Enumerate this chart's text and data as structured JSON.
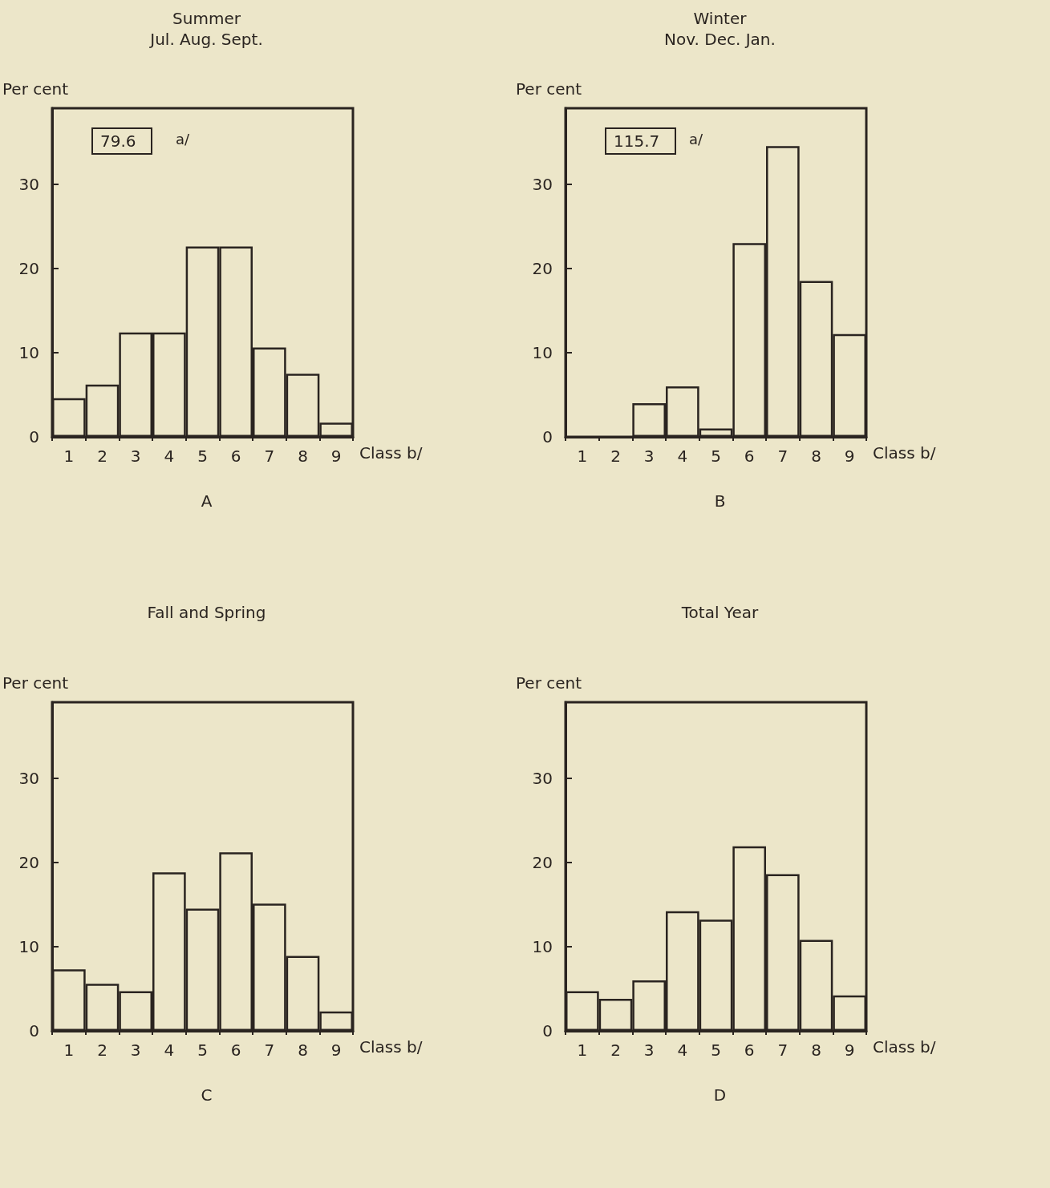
{
  "chart_data": [
    {
      "type": "bar",
      "title": "Summer",
      "subtitle": "Jul. Aug. Sept.",
      "ylabel": "Per cent",
      "xlabel": "Class b/",
      "annotations": [
        "79.6",
        "a/",
        "A"
      ],
      "categories": [
        "1",
        "2",
        "3",
        "4",
        "5",
        "6",
        "7",
        "8",
        "9"
      ],
      "values": [
        4.6,
        6.2,
        12.4,
        12.4,
        22.6,
        22.6,
        10.6,
        7.5,
        1.7
      ],
      "color": "#ece6c9",
      "ylim": [
        0,
        39
      ],
      "yticks": [
        0,
        10,
        20,
        30
      ]
    },
    {
      "type": "bar",
      "title": "Winter",
      "subtitle": "Nov. Dec. Jan.",
      "ylabel": "Per cent",
      "xlabel": "Class b/",
      "annotations": [
        "115.7",
        "a/",
        "B"
      ],
      "categories": [
        "1",
        "2",
        "3",
        "4",
        "5",
        "6",
        "7",
        "8",
        "9"
      ],
      "values": [
        0,
        0,
        4.0,
        6.0,
        1.0,
        23.0,
        34.5,
        18.5,
        12.2
      ],
      "color": "#ece6c9",
      "ylim": [
        0,
        39
      ],
      "yticks": [
        0,
        10,
        20,
        30
      ]
    },
    {
      "type": "bar",
      "title": "Fall and Spring",
      "ylabel": "Per cent",
      "xlabel": "Class b/",
      "annotations": [
        "C"
      ],
      "categories": [
        "1",
        "2",
        "3",
        "4",
        "5",
        "6",
        "7",
        "8",
        "9"
      ],
      "values": [
        7.3,
        5.6,
        4.7,
        18.8,
        14.5,
        21.2,
        15.1,
        8.9,
        2.3
      ],
      "color": "#ece6c9",
      "ylim": [
        0,
        39
      ],
      "yticks": [
        0,
        10,
        20,
        30
      ]
    },
    {
      "type": "bar",
      "title": "Total Year",
      "ylabel": "Per cent",
      "xlabel": "Class b/",
      "annotations": [
        "D"
      ],
      "categories": [
        "1",
        "2",
        "3",
        "4",
        "5",
        "6",
        "7",
        "8",
        "9"
      ],
      "values": [
        4.7,
        3.8,
        6.0,
        14.2,
        13.2,
        21.9,
        18.6,
        10.8,
        4.2
      ],
      "color": "#ece6c9",
      "ylim": [
        0,
        39
      ],
      "yticks": [
        0,
        10,
        20,
        30
      ]
    }
  ]
}
